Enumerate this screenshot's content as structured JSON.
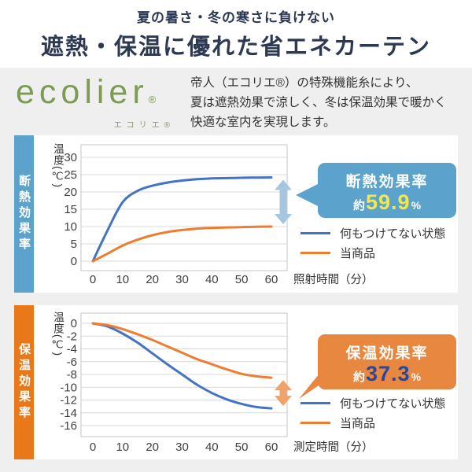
{
  "page": {
    "subtitle": "夏の暑さ・冬の寒さに負けない",
    "title": "遮熱・保温に優れた省エネカーテン"
  },
  "brand": {
    "logo": "ecolier",
    "logo_reg": "®",
    "logo_kana": "エコリエ®",
    "logo_color": "#7d9b55",
    "description_lines": [
      "帝人（エコリエ®）の特殊機能糸により、",
      "夏は遮熱効果で涼しく、冬は保温効果で暖かく",
      "快適な室内を実現します。"
    ]
  },
  "sections": [
    {
      "side_label": "断熱効果率",
      "accent": "#5ba3cc",
      "badge": {
        "title": "断熱効果率",
        "prefix": "約",
        "value": "59.9",
        "unit": "%",
        "bg": "#5ba3cc",
        "value_color": "#f3e74c"
      }
    },
    {
      "side_label": "保温効果率",
      "accent": "#e87818",
      "badge": {
        "title": "保温効果率",
        "prefix": "約",
        "value": "37.3",
        "unit": "%",
        "bg": "#e8873f",
        "value_color": "#28479e"
      }
    }
  ],
  "chart_data": [
    {
      "type": "line",
      "title": "断熱効果率",
      "xlabel": "照射時間（分）",
      "ylabel": "温度(℃)",
      "x": [
        0,
        5,
        10,
        15,
        20,
        25,
        30,
        35,
        40,
        45,
        50,
        55,
        60
      ],
      "xticks": [
        0,
        10,
        20,
        30,
        40,
        50,
        60
      ],
      "yticks": [
        30,
        25,
        20,
        15,
        10,
        5,
        0
      ],
      "ylim": [
        -2.7,
        33.6
      ],
      "grid": true,
      "series": [
        {
          "name": "何もつけてない状態",
          "color": "#4472c4",
          "values": [
            0,
            9,
            17,
            20.3,
            21.8,
            22.7,
            23.3,
            23.7,
            23.9,
            24,
            24.1,
            24.15,
            24.2
          ]
        },
        {
          "name": "当商品",
          "color": "#ed7d31",
          "values": [
            0,
            2.2,
            4.5,
            6.2,
            7.5,
            8.4,
            9,
            9.4,
            9.6,
            9.75,
            9.85,
            9.95,
            10
          ]
        }
      ],
      "gap_annotation": {
        "label": "断熱効果率 約59.9%",
        "at_x": 60,
        "from": 10,
        "to": 24.2,
        "color": "#a5c6de"
      }
    },
    {
      "type": "line",
      "title": "保温効果率",
      "xlabel": "測定時間（分）",
      "ylabel": "温度(℃)",
      "x": [
        0,
        5,
        10,
        15,
        20,
        25,
        30,
        35,
        40,
        45,
        50,
        55,
        60
      ],
      "xticks": [
        0,
        10,
        20,
        30,
        40,
        50,
        60
      ],
      "yticks": [
        0,
        -2,
        -4,
        -6,
        -8,
        -10,
        -12,
        -14,
        -16
      ],
      "ylim": [
        -17.7,
        2.8
      ],
      "grid": true,
      "series": [
        {
          "name": "何もつけてない状態",
          "color": "#4472c4",
          "values": [
            0,
            -0.5,
            -1.6,
            -3,
            -4.7,
            -6.4,
            -8,
            -9.6,
            -10.9,
            -11.9,
            -12.6,
            -13.1,
            -13.3
          ]
        },
        {
          "name": "当商品",
          "color": "#ed7d31",
          "values": [
            0,
            -0.3,
            -0.9,
            -1.7,
            -2.6,
            -3.6,
            -4.6,
            -5.6,
            -6.4,
            -7.2,
            -7.9,
            -8.3,
            -8.5
          ]
        }
      ],
      "gap_annotation": {
        "label": "保温効果率 約37.3%",
        "at_x": 60,
        "from": -8.5,
        "to": -13.3,
        "color": "#f0a268"
      }
    }
  ]
}
